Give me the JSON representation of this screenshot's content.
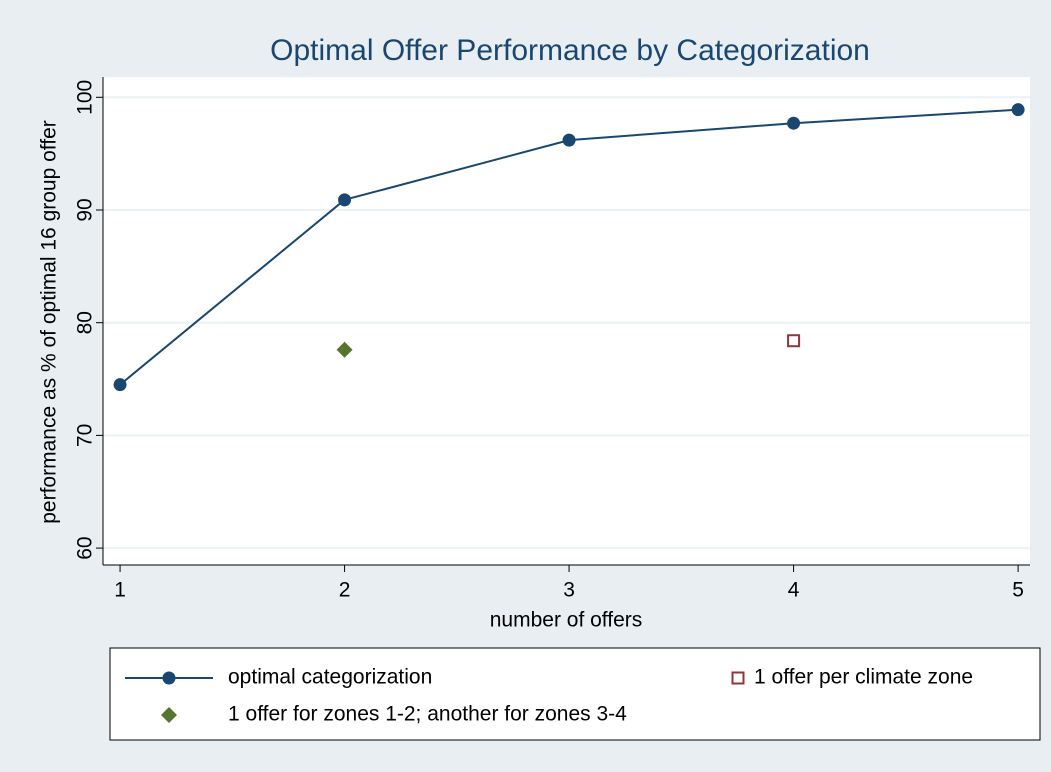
{
  "chart_data": {
    "type": "line",
    "title": "Optimal Offer Performance by Categorization",
    "x_label": "number of offers",
    "y_label": "performance as % of optimal 16 group offer",
    "xlim": [
      0.924,
      5.053
    ],
    "xticks": [
      1,
      2,
      3,
      4,
      5
    ],
    "ylim": [
      58.5,
      101.8
    ],
    "yticks": [
      60,
      70,
      80,
      90,
      100
    ],
    "grid": true,
    "legend": "bottom",
    "series": [
      {
        "name": "optimal categorization",
        "color": "#1a476f",
        "marker": "circle",
        "line": true,
        "x": [
          1,
          2,
          3,
          4,
          5
        ],
        "values": [
          74.5,
          90.9,
          96.2,
          97.7,
          98.9
        ]
      },
      {
        "name": "1 offer per climate zone",
        "color": "#90353b",
        "marker": "square",
        "line": false,
        "x": [
          4
        ],
        "values": [
          78.4
        ]
      },
      {
        "name": "1 offer for zones 1-2; another for zones 3-4",
        "color": "#55752f",
        "marker": "diamond",
        "line": false,
        "x": [
          2
        ],
        "values": [
          77.6
        ]
      }
    ]
  }
}
